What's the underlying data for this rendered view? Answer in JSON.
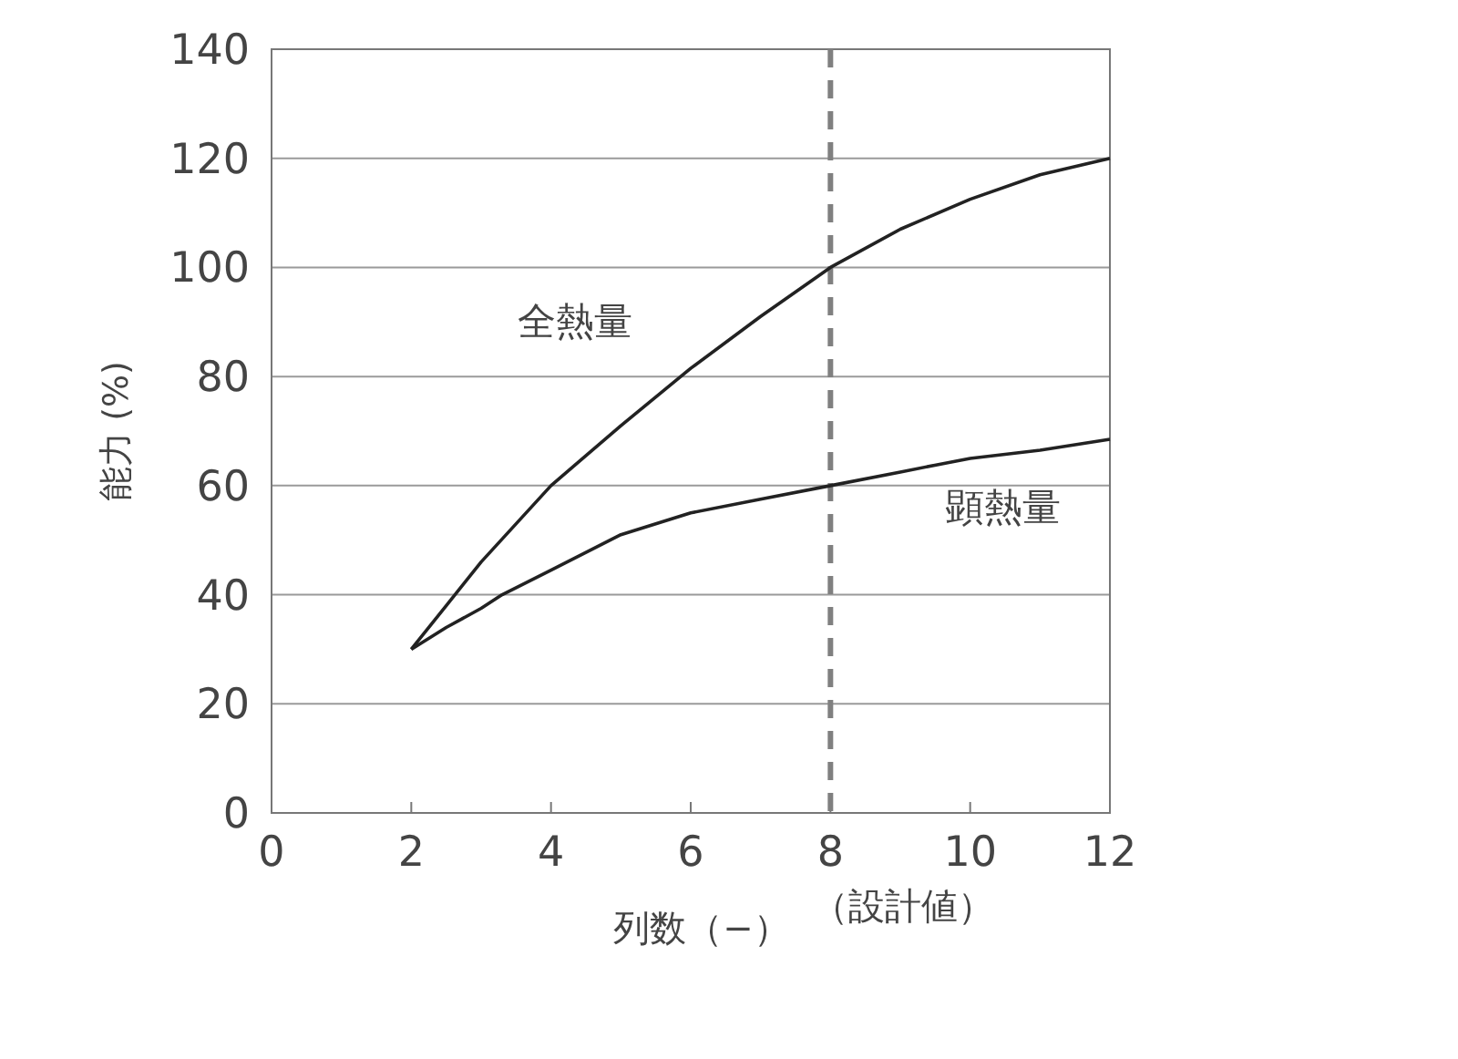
{
  "chart_data": {
    "type": "line",
    "xlabel": "列数（−）",
    "ylabel": "能力 (%)",
    "xlim": [
      0,
      12
    ],
    "ylim": [
      0,
      140
    ],
    "xticks": [
      0,
      2,
      4,
      6,
      8,
      10,
      12
    ],
    "yticks": [
      0,
      20,
      40,
      60,
      80,
      100,
      120,
      140
    ],
    "grid": "y",
    "marker": "none",
    "line_style": "solid",
    "series": [
      {
        "name": "全熱量",
        "color": "#222222",
        "x": [
          2,
          2.5,
          3,
          4,
          5,
          6,
          7,
          8,
          9,
          10,
          11,
          12
        ],
        "values": [
          30,
          38,
          46,
          60,
          71,
          81.5,
          91,
          100,
          107,
          112.5,
          117,
          120
        ]
      },
      {
        "name": "顕熱量",
        "color": "#222222",
        "x": [
          2,
          2.5,
          3,
          3.3,
          4,
          5,
          6,
          7,
          8,
          9,
          10,
          11,
          12
        ],
        "values": [
          30,
          34,
          37.5,
          40,
          44.5,
          51,
          55,
          57.5,
          60,
          62.5,
          65,
          66.5,
          68.5
        ]
      }
    ],
    "ref_lines": [
      {
        "axis": "x",
        "value": 8,
        "label": "（設計値）",
        "color": "#808080",
        "line_style": "dashed"
      }
    ]
  }
}
